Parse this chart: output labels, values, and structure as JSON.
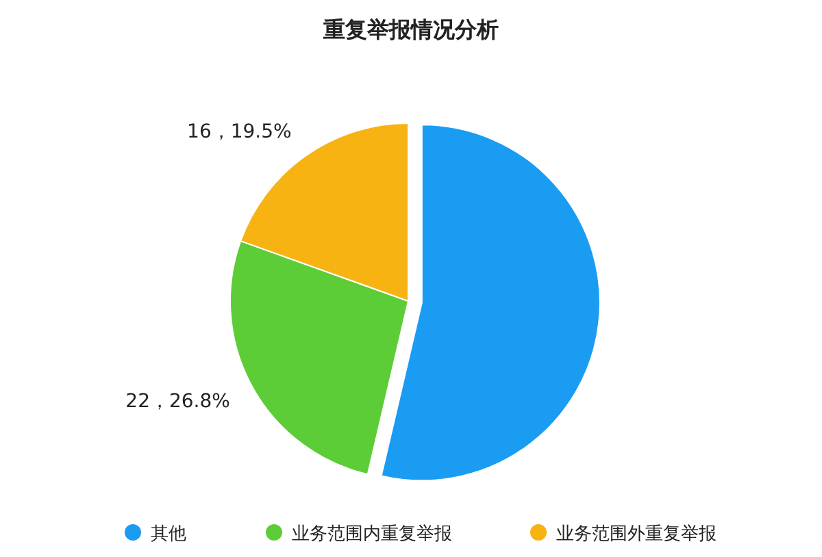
{
  "chart_data": {
    "type": "pie",
    "title": "重复举报情况分析",
    "categories": [
      "其他",
      "业务范围内重复举报",
      "业务范围外重复举报"
    ],
    "values": [
      44,
      22,
      16
    ],
    "colors": [
      "#1a9cf2",
      "#5ccd36",
      "#f7b312"
    ],
    "value_labels": [
      null,
      "22，26.8%",
      "16，19.5%"
    ],
    "legend": "bottom"
  }
}
